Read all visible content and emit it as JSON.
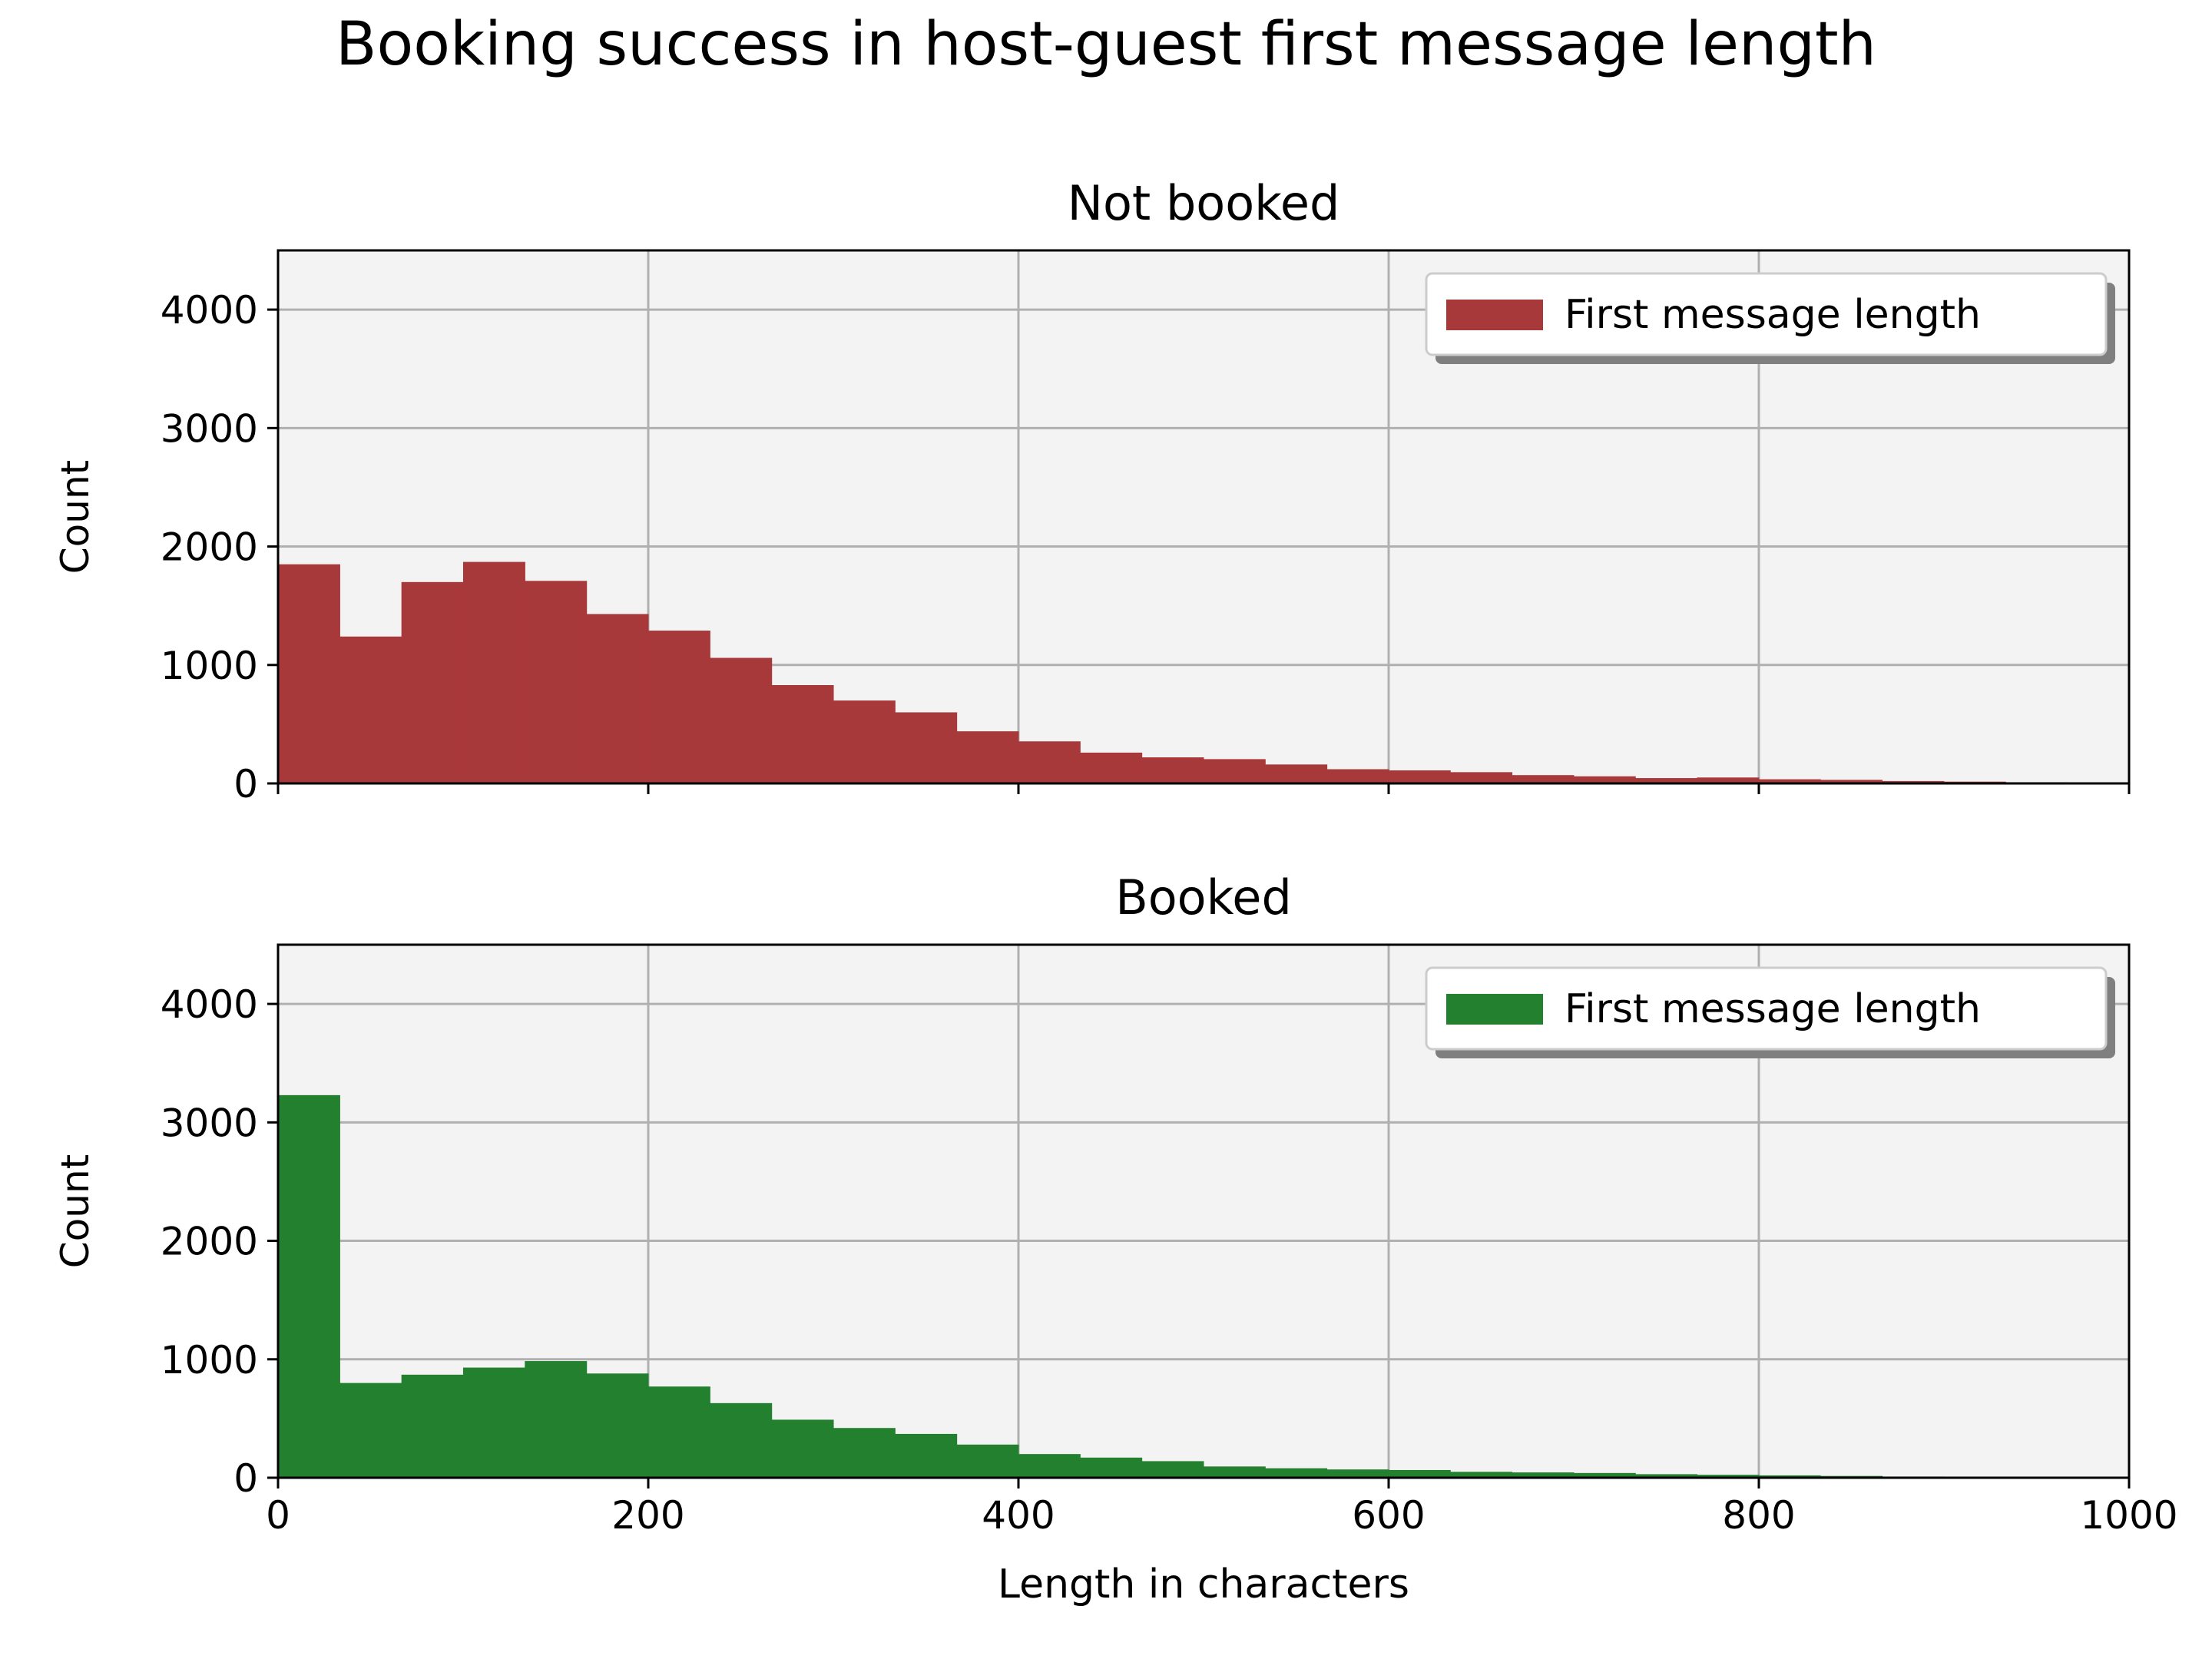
{
  "figure": {
    "suptitle": "Booking success in host-guest first message length"
  },
  "chart_data": [
    {
      "type": "bar",
      "title": "Not booked",
      "xlabel": "",
      "ylabel": "Count",
      "xlim": [
        0,
        1000
      ],
      "ylim": [
        0,
        4500
      ],
      "xticks": [
        "0",
        "200",
        "400",
        "600",
        "800",
        "1000"
      ],
      "yticks": [
        "0",
        "1000",
        "2000",
        "3000",
        "4000"
      ],
      "show_xtick_labels": false,
      "grid": true,
      "legend": {
        "position": "top-right",
        "label": "First message length",
        "shadow": true
      },
      "bar_color": "#a8393a",
      "background": "#f3f3f3",
      "bin_width": 33.33,
      "bin_start": 0,
      "values": [
        1850,
        1240,
        1700,
        1870,
        1710,
        1430,
        1290,
        1060,
        830,
        700,
        600,
        440,
        355,
        260,
        220,
        205,
        160,
        120,
        110,
        95,
        70,
        60,
        45,
        50,
        35,
        30,
        20,
        15,
        10,
        8
      ]
    },
    {
      "type": "bar",
      "title": "Booked",
      "xlabel": "Length in characters",
      "ylabel": "Count",
      "xlim": [
        0,
        1000
      ],
      "ylim": [
        0,
        4500
      ],
      "xticks": [
        "0",
        "200",
        "400",
        "600",
        "800",
        "1000"
      ],
      "yticks": [
        "0",
        "1000",
        "2000",
        "3000",
        "4000"
      ],
      "show_xtick_labels": true,
      "grid": true,
      "legend": {
        "position": "top-right",
        "label": "First message length",
        "shadow": true
      },
      "bar_color": "#23802e",
      "background": "#f3f3f3",
      "bin_width": 33.33,
      "bin_start": 0,
      "values": [
        3230,
        800,
        870,
        930,
        985,
        880,
        770,
        630,
        490,
        420,
        370,
        280,
        200,
        170,
        140,
        95,
        80,
        70,
        65,
        50,
        45,
        40,
        30,
        25,
        20,
        15,
        10,
        8,
        5,
        3
      ]
    }
  ]
}
